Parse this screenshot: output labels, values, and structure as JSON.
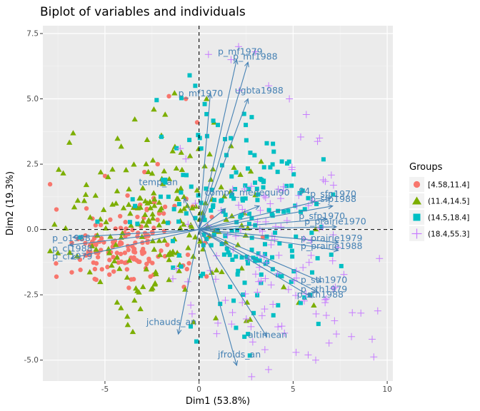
{
  "chart_data": {
    "type": "scatter",
    "title": "Biplot of variables and individuals",
    "xlabel": "Dim1 (53.8%)",
    "ylabel": "Dim2 (19.3%)",
    "xlim": [
      -8.3,
      10.3
    ],
    "ylim": [
      -5.8,
      7.8
    ],
    "x_ticks": [
      -5,
      0,
      5,
      10
    ],
    "y_ticks": [
      -5.0,
      -2.5,
      0.0,
      2.5,
      5.0,
      7.5
    ],
    "x_tick_labels": [
      "-5",
      "0",
      "5",
      "10"
    ],
    "y_tick_labels": [
      "-5.0",
      "-2.5",
      "0.0",
      "2.5",
      "5.0",
      "7.5"
    ],
    "grid": true,
    "reference_lines": {
      "x": 0,
      "y": 0,
      "style": "dashed"
    },
    "legend": {
      "title": "Groups",
      "position": "right",
      "entries": [
        {
          "label": "[4.58,11.4]",
          "color": "#F8766D",
          "shape": "circle"
        },
        {
          "label": "(11.4,14.5]",
          "color": "#7CAE00",
          "shape": "triangle"
        },
        {
          "label": "(14.5,18.4]",
          "color": "#00BFC4",
          "shape": "square"
        },
        {
          "label": "(18.4,55.3]",
          "color": "#C77CFF",
          "shape": "cross"
        }
      ]
    },
    "arrow_color": "#4682b4",
    "variables": [
      {
        "name": "p_mf1979",
        "x": 2.0,
        "y": 6.5,
        "lx": 1.0,
        "ly": 6.7
      },
      {
        "name": "p_mf1988",
        "x": 2.6,
        "y": 6.4,
        "lx": 1.8,
        "ly": 6.5
      },
      {
        "name": "p_mf1970",
        "x": 0.6,
        "y": 5.2,
        "lx": -1.1,
        "ly": 5.1
      },
      {
        "name": "ugbta1988",
        "x": 2.6,
        "y": 5.0,
        "lx": 1.9,
        "ly": 5.2
      },
      {
        "name": "temp_an",
        "x": -0.8,
        "y": 1.2,
        "lx": -3.2,
        "ly": 1.7
      },
      {
        "name": "compx_medequi90",
        "x": 1.4,
        "y": 0.8,
        "lx": 0.3,
        "ly": 1.3
      },
      {
        "name": "94",
        "x": 3.2,
        "y": 0.9,
        "lx": 5.3,
        "ly": 1.35
      },
      {
        "name": "p_sfp1970",
        "x": 7.0,
        "y": 1.2,
        "lx": 5.9,
        "ly": 1.25
      },
      {
        "name": "p_sfp1988",
        "x": 7.1,
        "y": 0.9,
        "lx": 5.9,
        "ly": 1.05
      },
      {
        "name": "p_sfp1970",
        "x": 6.8,
        "y": 0.4,
        "lx": 5.3,
        "ly": 0.4
      },
      {
        "name": "p_prairie1970",
        "x": 7.3,
        "y": 0.1,
        "lx": 5.6,
        "ly": 0.2
      },
      {
        "name": "p_prairie1979",
        "x": 7.4,
        "y": -0.5,
        "lx": 5.4,
        "ly": -0.45
      },
      {
        "name": "p_prairie1988",
        "x": 7.4,
        "y": -0.8,
        "lx": 5.4,
        "ly": -0.75
      },
      {
        "name": "p_o1988",
        "x": -6.7,
        "y": -0.3,
        "lx": -7.8,
        "ly": -0.45
      },
      {
        "name": "p_cl1988",
        "x": -6.9,
        "y": -0.6,
        "lx": -7.8,
        "ly": -0.85
      },
      {
        "name": "p_cl1979",
        "x": -6.8,
        "y": -1.1,
        "lx": -7.8,
        "ly": -1.15
      },
      {
        "name": "p_sth1970",
        "x": 6.5,
        "y": -2.0,
        "lx": 5.4,
        "ly": -2.05
      },
      {
        "name": "p_sth1979",
        "x": 6.3,
        "y": -2.4,
        "lx": 5.4,
        "ly": -2.4
      },
      {
        "name": "p_sth1988",
        "x": 6.0,
        "y": -2.6,
        "lx": 5.2,
        "ly": -2.6
      },
      {
        "name": "jchauds_an",
        "x": -1.1,
        "y": -4.0,
        "lx": -2.8,
        "ly": -3.65
      },
      {
        "name": "altimean",
        "x": 3.6,
        "y": -4.1,
        "lx": 2.6,
        "ly": -4.15
      },
      {
        "name": "jfroids_an",
        "x": 2.0,
        "y": -5.2,
        "lx": 1.0,
        "ly": -4.9
      }
    ],
    "groups_note": "individual points: distribution approximated per legend group",
    "series": [
      {
        "name": "[4.58,11.4]",
        "color": "#F8766D",
        "shape": "circle",
        "center": [
          -4.0,
          -0.6
        ],
        "spread": [
          1.9,
          0.8
        ],
        "extras": [
          [
            -1.6,
            5.1
          ],
          [
            -0.7,
            5.0
          ],
          [
            -0.1,
            4.1
          ],
          [
            -2.2,
            2.5
          ],
          [
            -2.9,
            2.2
          ],
          [
            -1.3,
            0.9
          ],
          [
            -3.8,
            1.3
          ],
          [
            0.5,
            -0.3
          ],
          [
            -0.8,
            -2.2
          ],
          [
            -1.0,
            -1.4
          ],
          [
            -7.6,
            -1.3
          ]
        ]
      },
      {
        "name": "(11.4,14.5]",
        "color": "#7CAE00",
        "shape": "triangle",
        "center": [
          -2.0,
          0.3
        ],
        "spread": [
          2.6,
          1.6
        ],
        "extras": [
          [
            -2.4,
            4.6
          ],
          [
            -1.8,
            4.4
          ],
          [
            -2.0,
            3.6
          ],
          [
            -1.4,
            3.0
          ],
          [
            0.4,
            5.0
          ],
          [
            0.8,
            4.1
          ],
          [
            -5.5,
            1.3
          ],
          [
            -6.1,
            1.1
          ],
          [
            -7.5,
            -0.9
          ],
          [
            -4.6,
            2.3
          ],
          [
            1.7,
            3.2
          ],
          [
            2.2,
            2.1
          ],
          [
            3.3,
            2.6
          ],
          [
            4.5,
            -2.2
          ],
          [
            5.3,
            -2.8
          ],
          [
            6.1,
            -2.9
          ]
        ]
      },
      {
        "name": "(14.5,18.4]",
        "color": "#00BFC4",
        "shape": "square",
        "center": [
          2.2,
          0.2
        ],
        "spread": [
          2.4,
          2.1
        ],
        "extras": [
          [
            -0.5,
            5.9
          ],
          [
            -0.2,
            5.5
          ],
          [
            0.3,
            4.8
          ],
          [
            1.0,
            4.0
          ],
          [
            2.8,
            4.3
          ],
          [
            3.6,
            3.3
          ],
          [
            4.4,
            2.6
          ],
          [
            5.8,
            1.2
          ],
          [
            6.3,
            -1.1
          ],
          [
            5.6,
            -2.6
          ],
          [
            4.2,
            -2.9
          ],
          [
            2.9,
            -3.2
          ],
          [
            -5.4,
            0.3
          ],
          [
            -6.3,
            -0.3
          ],
          [
            -1.8,
            1.8
          ],
          [
            -3.4,
            0.9
          ],
          [
            2.6,
            -4.0
          ],
          [
            5.9,
            -2.5
          ],
          [
            4.9,
            -2.0
          ]
        ]
      },
      {
        "name": "(18.4,55.3]",
        "color": "#C77CFF",
        "shape": "cross",
        "center": [
          4.3,
          -1.2
        ],
        "spread": [
          2.3,
          2.3
        ],
        "extras": [
          [
            2.1,
            7.0
          ],
          [
            3.0,
            6.8
          ],
          [
            1.7,
            6.5
          ],
          [
            0.5,
            6.7
          ],
          [
            3.7,
            5.5
          ],
          [
            4.8,
            5.0
          ],
          [
            5.7,
            4.4
          ],
          [
            6.4,
            3.5
          ],
          [
            7.1,
            -1.2
          ],
          [
            7.3,
            -4.0
          ],
          [
            8.1,
            -4.1
          ],
          [
            8.6,
            -3.2
          ],
          [
            9.2,
            -4.2
          ],
          [
            6.7,
            -2.8
          ],
          [
            6.2,
            -5.0
          ],
          [
            5.8,
            -4.8
          ],
          [
            4.4,
            -3.7
          ],
          [
            3.5,
            -4.6
          ],
          [
            -0.6,
            -2.0
          ],
          [
            -1.2,
            -1.5
          ],
          [
            -0.7,
            2.7
          ],
          [
            -1.0,
            3.1
          ],
          [
            -0.2,
            1.0
          ],
          [
            5.3,
            1.3
          ],
          [
            6.6,
            1.9
          ],
          [
            2.3,
            -2.8
          ],
          [
            3.1,
            -2.4
          ]
        ]
      }
    ]
  }
}
